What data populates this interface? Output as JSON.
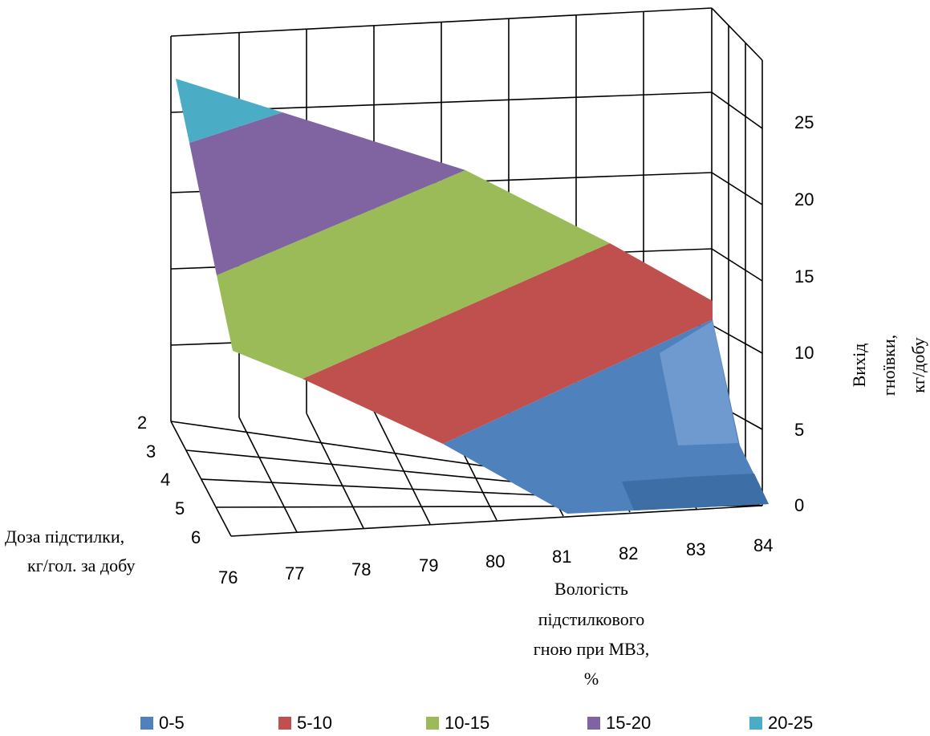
{
  "chart_data": {
    "type": "surface",
    "title": "",
    "z_axis": {
      "label_lines": [
        "Вихід",
        "гноївки,",
        "кг/добу"
      ],
      "ticks": [
        "0",
        "5",
        "10",
        "15",
        "20",
        "25"
      ],
      "range": [
        0,
        25
      ],
      "grid": true
    },
    "depth_axis": {
      "label_lines": [
        "Доза підстилки,",
        "кг/гол. за добу"
      ],
      "categories": [
        "2",
        "3",
        "4",
        "5",
        "6"
      ]
    },
    "x_axis": {
      "label_lines": [
        "Вологість",
        "підстилкового",
        "гною при МВЗ,",
        "%"
      ],
      "categories": [
        "76",
        "77",
        "78",
        "79",
        "80",
        "81",
        "82",
        "83",
        "84"
      ]
    },
    "legend": {
      "placement": "bottom",
      "items": [
        {
          "label": "0-5",
          "color": "#4F81BD"
        },
        {
          "label": "5-10",
          "color": "#C0504D"
        },
        {
          "label": "10-15",
          "color": "#9BBB59"
        },
        {
          "label": "15-20",
          "color": "#8064A2"
        },
        {
          "label": "20-25",
          "color": "#4BACC6"
        }
      ]
    },
    "series_note_values_kg_per_day": {
      "dose_2": [
        25.0,
        22.0,
        19.5,
        17.2,
        15.2,
        13.4,
        11.8,
        10.4,
        9.2
      ],
      "dose_6": [
        11.0,
        9.6,
        8.3,
        7.0,
        5.7,
        4.2,
        2.6,
        1.0,
        0.0
      ]
    }
  }
}
